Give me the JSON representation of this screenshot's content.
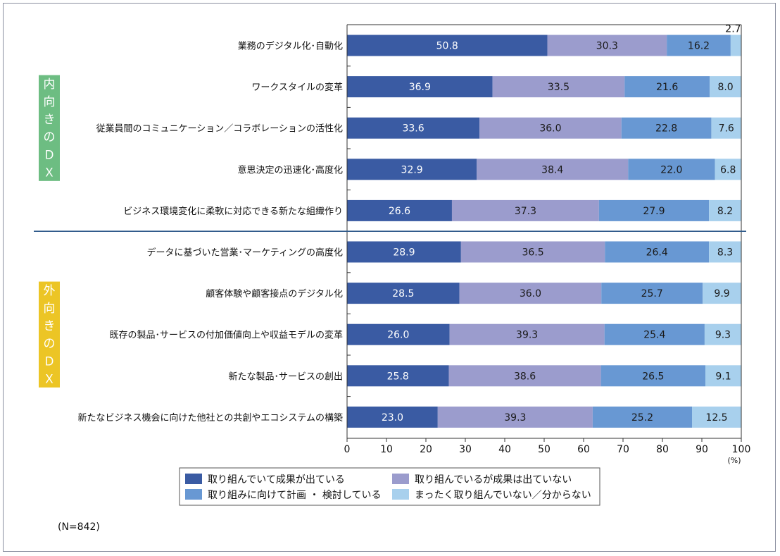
{
  "chart_data": {
    "type": "bar",
    "orientation": "horizontal",
    "stacked": true,
    "groups": [
      {
        "label": "内向きのＤＸ",
        "color": "#6dbd82",
        "first": 0,
        "last": 4
      },
      {
        "label": "外向きのＤＸ",
        "color": "#ecc525",
        "first": 5,
        "last": 9
      }
    ],
    "categories": [
      "業務のデジタル化･自動化",
      "ワークスタイルの変革",
      "従業員間のコミュニケーション／コラボレーションの活性化",
      "意思決定の迅速化･高度化",
      "ビジネス環境変化に柔軟に対応できる新たな組織作り",
      "データに基づいた営業･マーケティングの高度化",
      "顧客体験や顧客接点のデジタル化",
      "既存の製品･サービスの付加価値向上や収益モデルの変革",
      "新たな製品･サービスの創出",
      "新たなビジネス機会に向けた他社との共創やエコシステムの構築"
    ],
    "series": [
      {
        "name": "取り組んでいて成果が出ている",
        "color": "#3a5ba3",
        "text_color": "#ffffff",
        "values": [
          50.8,
          36.9,
          33.6,
          32.9,
          26.6,
          28.9,
          28.5,
          26.0,
          25.8,
          23.0
        ],
        "labels": [
          "50.8",
          "36.9",
          "33.6",
          "32.9",
          "26.6",
          "28.9",
          "28.5",
          "26.0",
          "25.8",
          "23.0"
        ]
      },
      {
        "name": "取り組んでいるが成果は出ていない",
        "color": "#9b9ccd",
        "text_color": "#1a1a1a",
        "values": [
          30.3,
          33.5,
          36.0,
          38.4,
          37.3,
          36.5,
          36.0,
          39.3,
          38.6,
          39.3
        ],
        "labels": [
          "30.3",
          "33.5",
          "36.0",
          "38.4",
          "37.3",
          "36.5",
          "36.0",
          "39.3",
          "38.6",
          "39.3"
        ]
      },
      {
        "name": "取り組みに向けて計画 ・ 検討している",
        "color": "#6898d3",
        "text_color": "#1a1a1a",
        "values": [
          16.2,
          21.6,
          22.8,
          22.0,
          27.9,
          26.4,
          25.7,
          25.4,
          26.5,
          25.2
        ],
        "labels": [
          "16.2",
          "21.6",
          "22.8",
          "22.0",
          "27.9",
          "26.4",
          "25.7",
          "25.4",
          "26.5",
          "25.2"
        ]
      },
      {
        "name": "まったく取り組んでいない／分からない",
        "color": "#a8d0ed",
        "text_color": "#1a1a1a",
        "values": [
          2.7,
          8.0,
          7.6,
          6.8,
          8.2,
          8.3,
          9.9,
          9.3,
          9.1,
          12.5
        ],
        "labels": [
          "2.7",
          "8.0",
          "7.6",
          "6.8",
          "8.2",
          "8.3",
          "9.9",
          "9.3",
          "9.1",
          "12.5"
        ]
      }
    ],
    "xlim": [
      0,
      100
    ],
    "xticks": [
      "0",
      "10",
      "20",
      "30",
      "40",
      "50",
      "60",
      "70",
      "80",
      "90",
      "100"
    ],
    "unit": "(%)",
    "note": "(N=842)",
    "legend_position": "bottom",
    "divider_color": "#2f5a8a"
  }
}
